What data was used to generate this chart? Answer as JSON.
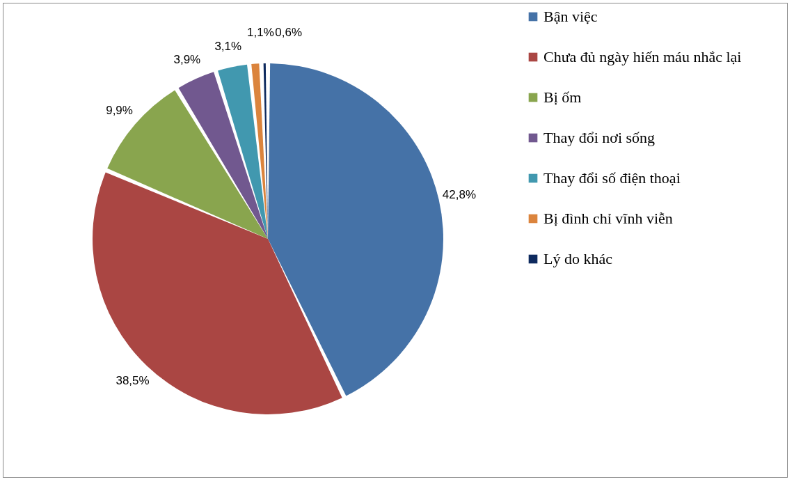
{
  "chart_data": {
    "type": "pie",
    "categories": [
      "Bận việc",
      "Chưa đủ ngày hiến máu nhắc lại",
      "Bị ốm",
      "Thay đổi nơi sống",
      "Thay đổi số điện thoại",
      "Bị đình chỉ vĩnh viễn",
      "Lý do khác"
    ],
    "values": [
      42.8,
      38.5,
      9.9,
      3.9,
      3.1,
      1.1,
      0.6
    ],
    "colors": [
      "#4572a7",
      "#aa4643",
      "#89a54e",
      "#71588f",
      "#4198af",
      "#db843d",
      "#0e2a5e"
    ],
    "value_labels": [
      "42,8%",
      "38,5%",
      "9,9%",
      "3,9%",
      "3,1%",
      "1,1%",
      "0,6%"
    ],
    "legend": "right"
  }
}
